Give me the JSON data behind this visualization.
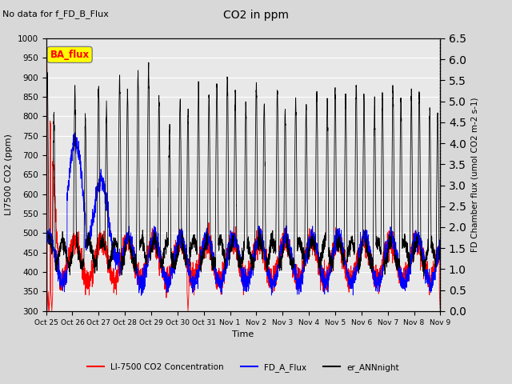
{
  "title": "CO2 in ppm",
  "suptitle": "No data for f_FD_B_Flux",
  "ylabel_left": "LI7500 CO2 (ppm)",
  "ylabel_right": "FD Chamber flux (umol CO2 m-2 s-1)",
  "xlabel": "Time",
  "ylim_left": [
    300,
    1000
  ],
  "ylim_right": [
    0.0,
    6.5
  ],
  "background_color": "#d8d8d8",
  "plot_bg_color": "#e8e8e8",
  "legend_entries": [
    "LI-7500 CO2 Concentration",
    "FD_A_Flux",
    "er_ANNnight"
  ],
  "ba_flux_label": "BA_flux",
  "tick_labels": [
    "Oct 25",
    "Oct 26",
    "Oct 27",
    "Oct 28",
    "Oct 29",
    "Oct 30",
    "Oct 31",
    "Nov 1",
    "Nov 2",
    "Nov 3",
    "Nov 4",
    "Nov 5",
    "Nov 6",
    "Nov 7",
    "Nov 8",
    "Nov 9"
  ],
  "n_ticks": 16,
  "n_points": 3840,
  "seed": 7
}
